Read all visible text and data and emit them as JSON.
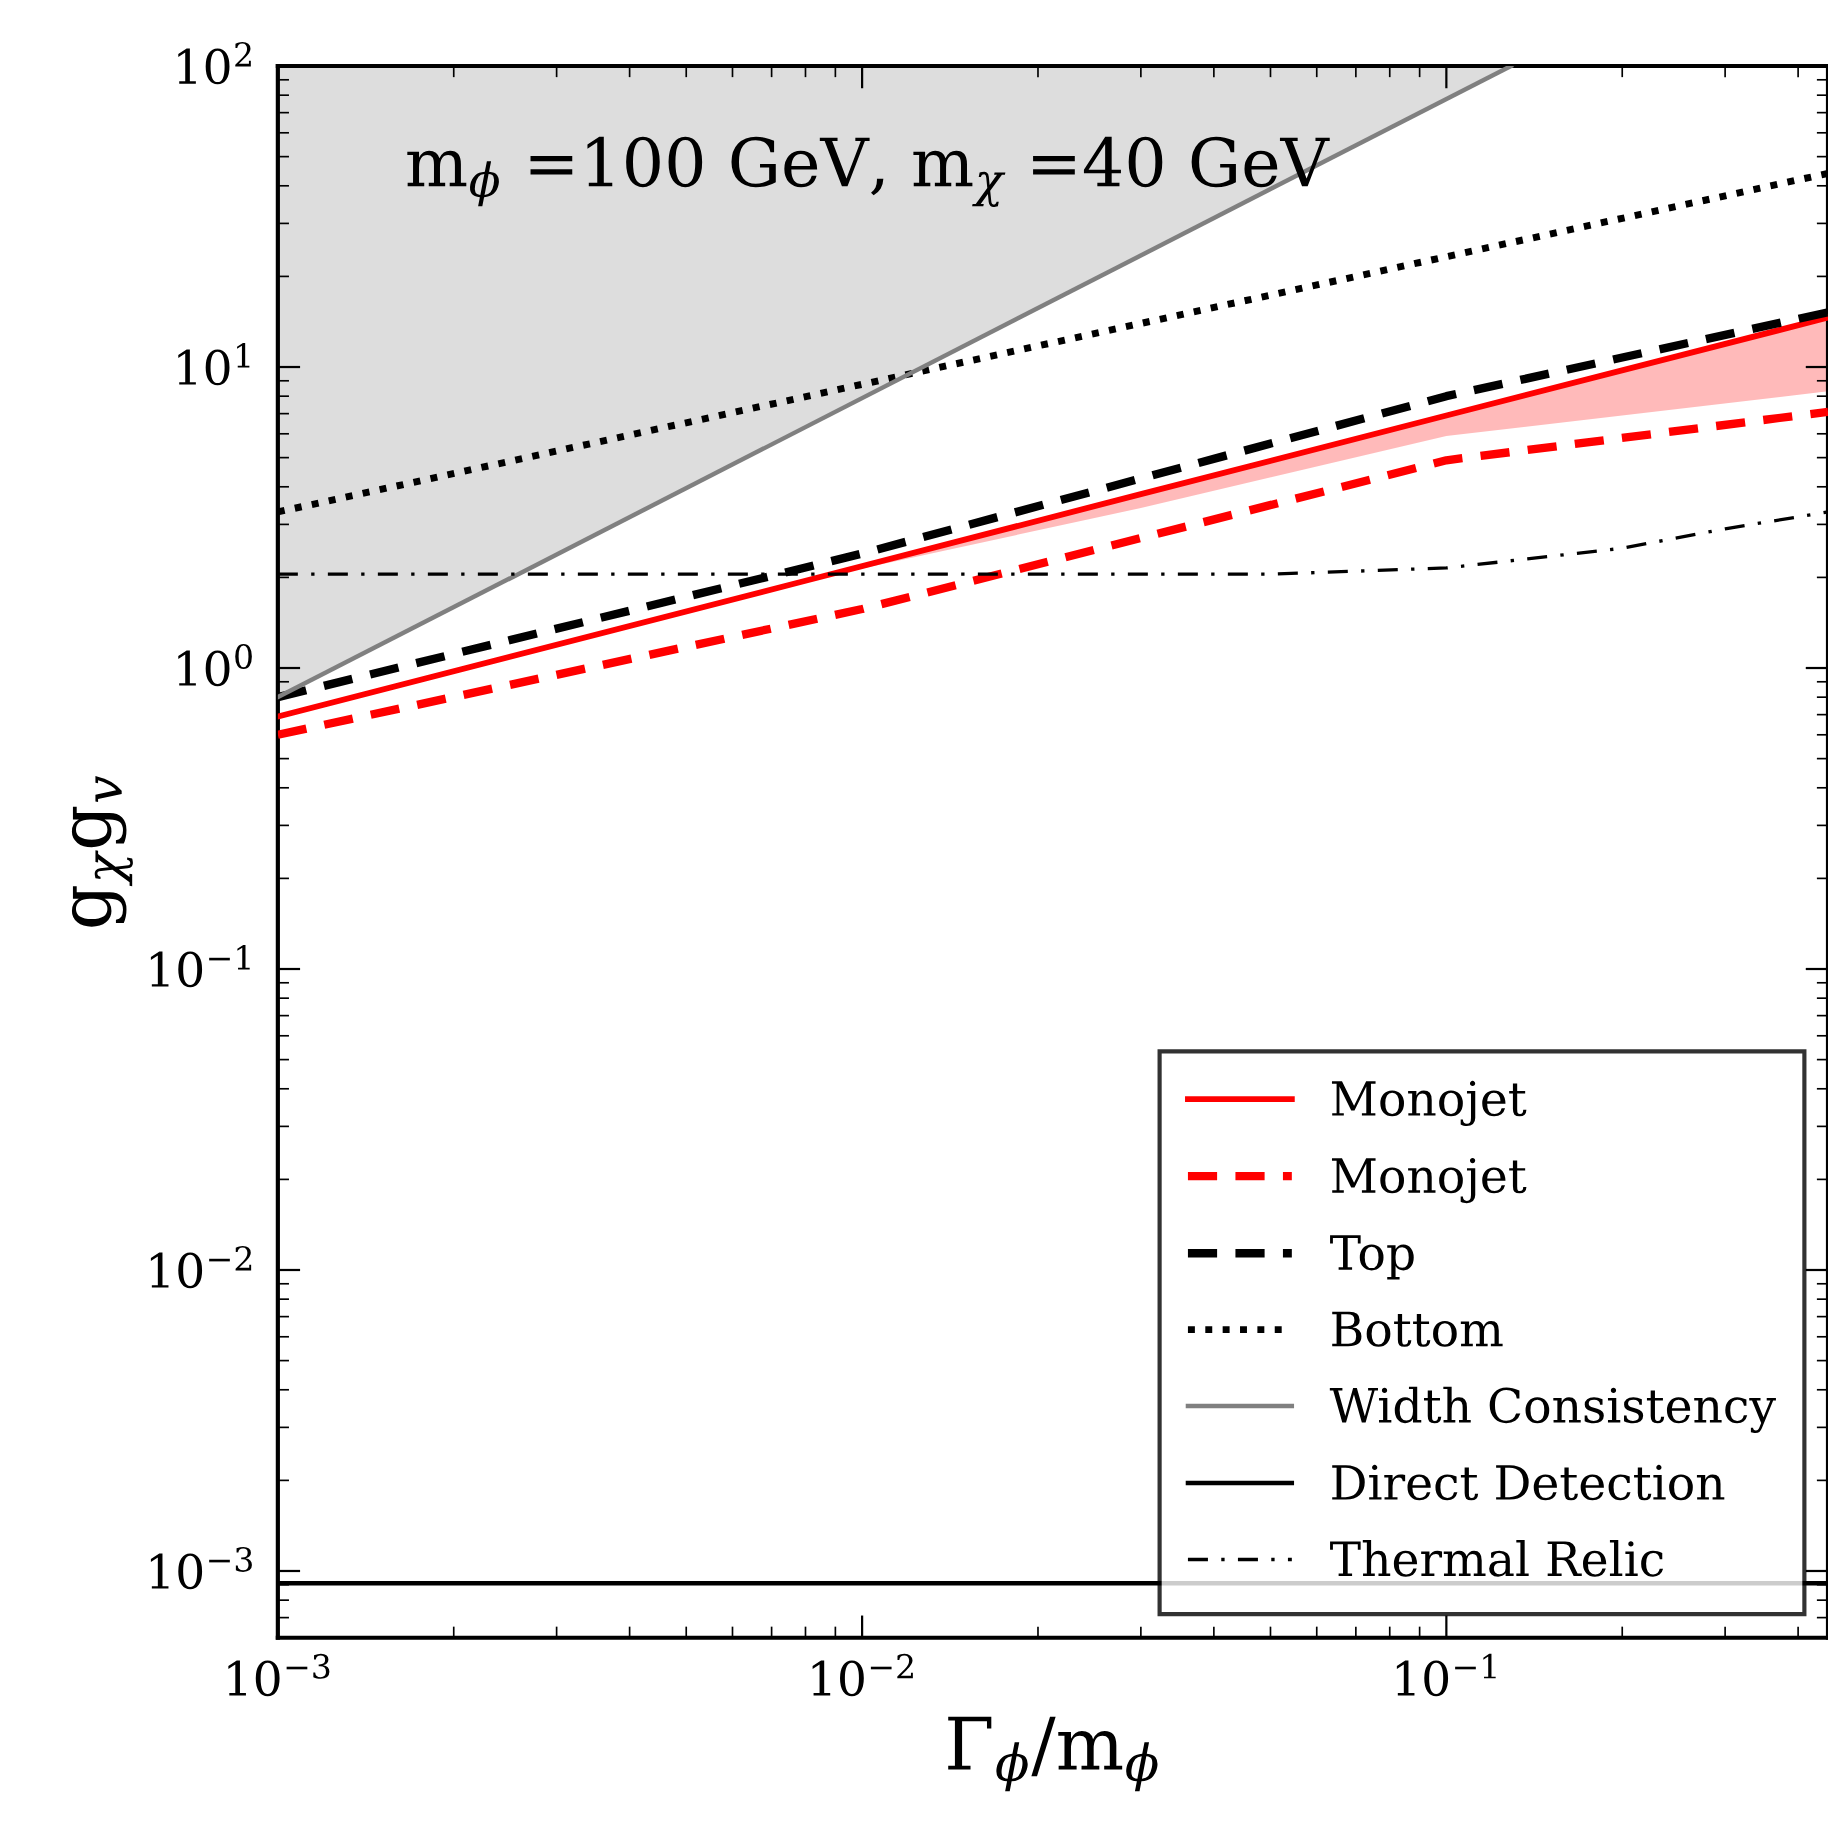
{
  "chart_data": {
    "type": "line",
    "xlabel": "Γ$_{ϕ}$/m$_{ϕ}$",
    "ylabel": "g$_{χ}$g$_{v}$",
    "annotations": [
      "m$_{ϕ}$ =100 GeV, m$_{χ}$ =40 GeV"
    ],
    "log": "xy",
    "xlim": [
      0.001,
      0.45
    ],
    "ylim": [
      0.0006,
      100
    ],
    "xticks": [
      {
        "value": 0.001,
        "label": "10$^{−3}$"
      },
      {
        "value": 0.01,
        "label": "10$^{−2}$"
      },
      {
        "value": 0.1,
        "label": "10$^{−1}$"
      }
    ],
    "yticks": [
      {
        "value": 0.001,
        "label": "10$^{−3}$"
      },
      {
        "value": 0.01,
        "label": "10$^{−2}$"
      },
      {
        "value": 0.1,
        "label": "10$^{−1}$"
      },
      {
        "value": 1,
        "label": "10$^{0}$"
      },
      {
        "value": 10,
        "label": "10$^{1}$"
      },
      {
        "value": 100,
        "label": "10$^{2}$"
      }
    ],
    "grid": false,
    "legend": "bottom right",
    "series": [
      {
        "name": "Monojet",
        "color": "#ff0000",
        "line_style": "solid",
        "x": [
          0.001,
          0.008,
          0.03,
          0.1,
          0.45
        ],
        "values": [
          0.69,
          1.95,
          3.78,
          6.9,
          14.6
        ],
        "lower": [
          0.69,
          1.95,
          3.4,
          5.9,
          8.3
        ],
        "upper": [
          0.69,
          1.95,
          3.78,
          6.9,
          14.6
        ]
      },
      {
        "name": "Monojet",
        "color": "#ff0000",
        "line_style": "dashed",
        "x": [
          0.001,
          0.01,
          0.1,
          0.45
        ],
        "values": [
          0.6,
          1.57,
          4.9,
          7.1
        ]
      },
      {
        "name": "Top",
        "color": "#000000",
        "line_style": "dashed",
        "x": [
          0.001,
          0.01,
          0.1,
          0.45
        ],
        "values": [
          0.8,
          2.4,
          8.0,
          15.2
        ]
      },
      {
        "name": "Bottom",
        "color": "#000000",
        "line_style": "dotted",
        "x": [
          0.001,
          0.45
        ],
        "values": [
          3.3,
          44
        ]
      },
      {
        "name": "Width Consistency",
        "color": "#808080",
        "line_style": "solid",
        "x": [
          0.001,
          0.129
        ],
        "values": [
          0.8,
          100
        ],
        "lower": [
          0.8,
          100
        ],
        "upper": [
          100,
          100
        ]
      },
      {
        "name": "Direct Detection",
        "color": "#000000",
        "line_style": "solid",
        "x": [
          0.001,
          0.45
        ],
        "values": [
          0.00091,
          0.00091
        ]
      },
      {
        "name": "Thermal Relic",
        "color": "#000000",
        "line_style": "dashdot",
        "x": [
          0.001,
          0.01,
          0.05,
          0.1,
          0.2,
          0.3,
          0.45
        ],
        "values": [
          2.05,
          2.05,
          2.05,
          2.15,
          2.5,
          2.9,
          3.3
        ]
      }
    ]
  }
}
